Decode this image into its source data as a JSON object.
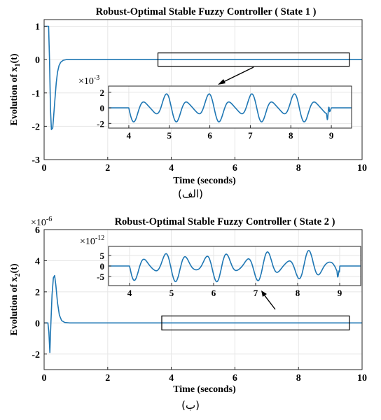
{
  "chart_data": [
    {
      "type": "line",
      "title": "Robust-Optimal Stable Fuzzy Controller ( State 1 )",
      "xlabel": "Time (seconds)",
      "ylabel": "Evolution of x",
      "ylabel_sub": "1",
      "ylabel_tail": "(t)",
      "xlim": [
        0,
        10
      ],
      "ylim": [
        -3,
        1.2
      ],
      "xticks": [
        "0",
        "2",
        "4",
        "6",
        "8",
        "10"
      ],
      "yticks": [
        "1",
        "0",
        "-1",
        "-2",
        "-3"
      ],
      "grid": true,
      "series": [
        {
          "x": [
            0,
            0.14,
            0.17,
            0.2,
            0.23,
            0.27,
            0.3,
            0.34,
            0.38,
            0.42,
            0.47,
            0.52,
            0.6,
            0.7,
            0.85,
            1.0,
            10
          ],
          "y": [
            1,
            1,
            0,
            -1.5,
            -2.1,
            -2.05,
            -1.7,
            -1.2,
            -0.7,
            -0.38,
            -0.18,
            -0.08,
            -0.02,
            0,
            0,
            0,
            0
          ]
        }
      ],
      "zoom_box": {
        "x": [
          3.58,
          9.6
        ],
        "y": [
          -0.2,
          0.2
        ]
      },
      "inset": {
        "multiplier": "×10",
        "exponent": "-3",
        "xlim": [
          3.5,
          9.5
        ],
        "ylim": [
          -2.6,
          2.8
        ],
        "xticks": [
          "4",
          "5",
          "6",
          "7",
          "8",
          "9"
        ],
        "yticks": [
          "2",
          "0",
          "-2"
        ],
        "signal": {
          "start": 4.0,
          "end": 9.0,
          "freq": 1.9,
          "amp": [
            2,
            1.3
          ],
          "spike_at": 8.92
        }
      },
      "caption": "(الف)"
    },
    {
      "type": "line",
      "title": "Robust-Optimal Stable Fuzzy Controller ( State 2 )",
      "multiplier": "×10",
      "exponent": "-6",
      "xlabel": "Time (seconds)",
      "ylabel": "Evolution of x",
      "ylabel_sub": "2",
      "ylabel_tail": "(t)",
      "xlim": [
        0,
        10
      ],
      "ylim": [
        -3,
        6
      ],
      "xticks": [
        "0",
        "2",
        "4",
        "6",
        "8",
        "10"
      ],
      "yticks": [
        "6",
        "4",
        "2",
        "0",
        "-2"
      ],
      "grid": true,
      "series": [
        {
          "x": [
            0,
            0.12,
            0.15,
            0.18,
            0.21,
            0.25,
            0.29,
            0.33,
            0.37,
            0.42,
            0.48,
            0.55,
            0.65,
            0.8,
            1.0,
            10
          ],
          "y": [
            0,
            0,
            -0.6,
            -1.9,
            -0.2,
            1.8,
            2.9,
            3.05,
            2.4,
            1.3,
            0.5,
            0.15,
            0.03,
            0,
            0,
            0
          ]
        }
      ],
      "zoom_box": {
        "x": [
          3.7,
          9.6
        ],
        "y": [
          -0.45,
          0.45
        ]
      },
      "inset": {
        "multiplier": "×10",
        "exponent": "-12",
        "xlim": [
          3.5,
          9.5
        ],
        "ylim": [
          -9.3,
          9.3
        ],
        "xticks": [
          "4",
          "5",
          "6",
          "7",
          "8",
          "9"
        ],
        "yticks": [
          "5",
          "0",
          "-5"
        ],
        "signal": {
          "start": 4.0,
          "end": 9.0,
          "freq": 2.05,
          "amp": [
            7.5,
            3.5
          ],
          "spike_at": 8.97
        }
      },
      "caption": "(ب)"
    }
  ]
}
